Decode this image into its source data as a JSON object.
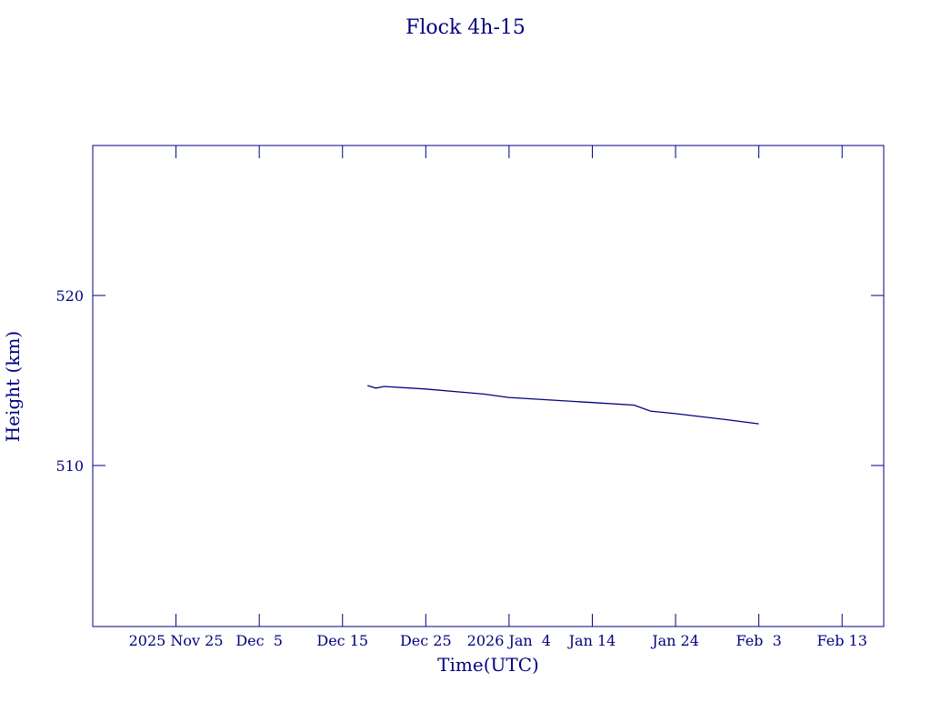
{
  "chart_data": {
    "type": "line",
    "title": "Flock 4h-15",
    "x_label": "Time(UTC)",
    "y_label": "Height (km)",
    "x": [
      "2025-12-18",
      "2025-12-19",
      "2025-12-20",
      "2025-12-25",
      "2026-01-01",
      "2026-01-04",
      "2026-01-14",
      "2026-01-19",
      "2026-01-21",
      "2026-01-24",
      "2026-01-30",
      "2026-02-03"
    ],
    "series": [
      {
        "name": "Height",
        "color": "#000080",
        "values": [
          514.7,
          514.55,
          514.65,
          514.5,
          514.2,
          514.0,
          513.7,
          513.55,
          513.2,
          513.05,
          512.7,
          512.45
        ]
      }
    ],
    "xlim": [
      "2025-11-15",
      "2026-02-18"
    ],
    "xticks": [
      {
        "value": "2025-11-25",
        "label": "2025 Nov 25"
      },
      {
        "value": "2025-12-05",
        "label": "Dec  5"
      },
      {
        "value": "2025-12-15",
        "label": "Dec 15"
      },
      {
        "value": "2025-12-25",
        "label": "Dec 25"
      },
      {
        "value": "2026-01-04",
        "label": "2026 Jan  4"
      },
      {
        "value": "2026-01-14",
        "label": "Jan 14"
      },
      {
        "value": "2026-01-24",
        "label": "Jan 24"
      },
      {
        "value": "2026-02-03",
        "label": "Feb  3"
      },
      {
        "value": "2026-02-13",
        "label": "Feb 13"
      }
    ],
    "ylim": [
      500.53,
      528.82
    ],
    "yticks": [
      510,
      520
    ],
    "axis_color": "#000080"
  }
}
